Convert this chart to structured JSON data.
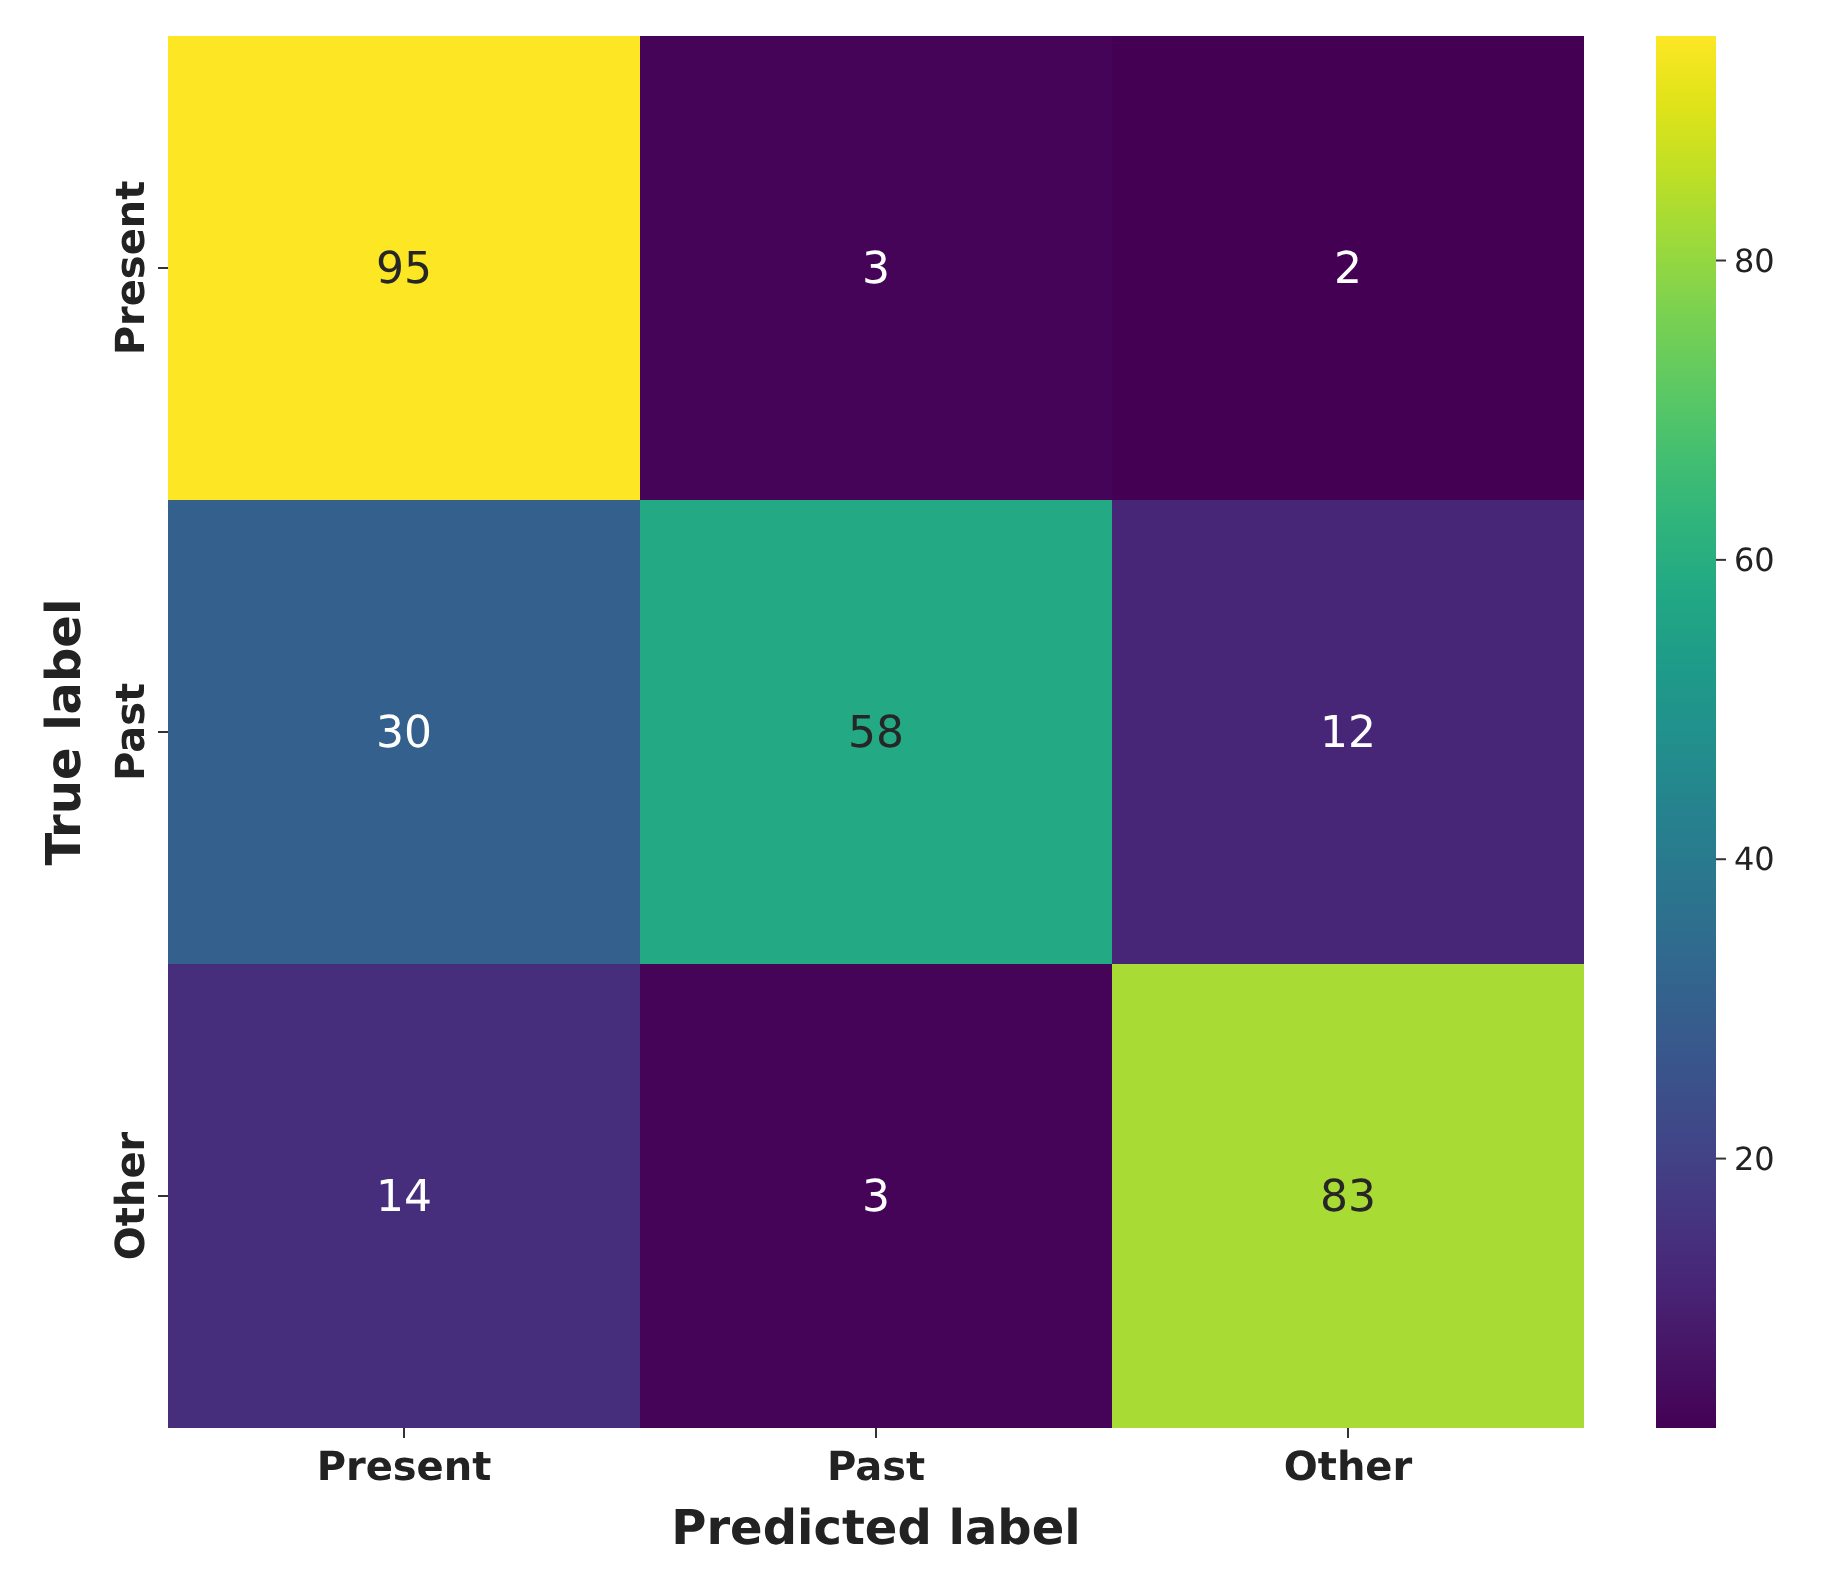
{
  "chart_data": {
    "type": "heatmap",
    "xlabel": "Predicted label",
    "ylabel": "True label",
    "categories": [
      "Present",
      "Past",
      "Other"
    ],
    "y_categories": [
      "Present",
      "Past",
      "Other"
    ],
    "cells": [
      [
        95,
        3,
        2
      ],
      [
        30,
        58,
        12
      ],
      [
        14,
        3,
        83
      ]
    ],
    "data_labels": true,
    "clim": [
      2,
      95
    ],
    "cticks": [
      20,
      40,
      60,
      80
    ]
  }
}
